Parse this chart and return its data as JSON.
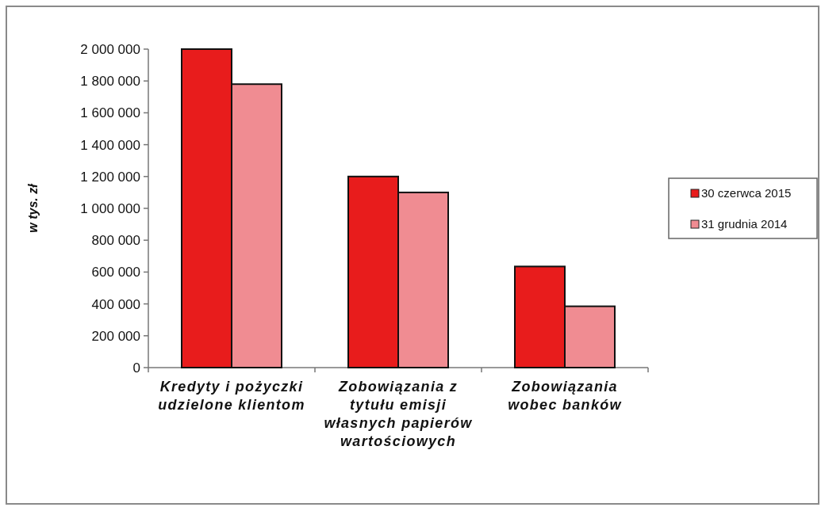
{
  "chart_data": {
    "type": "bar",
    "categories": [
      "Kredyty i pożyczki udzielone klientom",
      "Zobowiązania z tytułu emisji własnych papierów wartościowych",
      "Zobowiązania wobec banków"
    ],
    "ylabel": "w tys. zł",
    "series": [
      {
        "name": "30 czerwca 2015",
        "color": "#e81c1c",
        "values": [
          2000000,
          1200000,
          635000
        ]
      },
      {
        "name": "31 grudnia 2014",
        "color": "#f08c92",
        "values": [
          1780000,
          1100000,
          385000
        ]
      }
    ],
    "ylim": [
      0,
      2000000
    ],
    "yticks": [
      0,
      {
        "value": 200000,
        "label": "200 000"
      },
      {
        "value": 400000,
        "label": "400 000"
      },
      {
        "value": 600000,
        "label": "600 000"
      },
      {
        "value": 800000,
        "label": "800 000"
      },
      {
        "value": 1000000,
        "label": "1 000 000"
      },
      {
        "value": 1200000,
        "label": "1 200 000"
      },
      {
        "value": 1400000,
        "label": "1 400 000"
      },
      {
        "value": 1600000,
        "label": "1 600 000"
      },
      {
        "value": 1800000,
        "label": "1 800 000"
      },
      {
        "value": 2000000,
        "label": "2 000 000"
      }
    ],
    "legend": "right"
  }
}
